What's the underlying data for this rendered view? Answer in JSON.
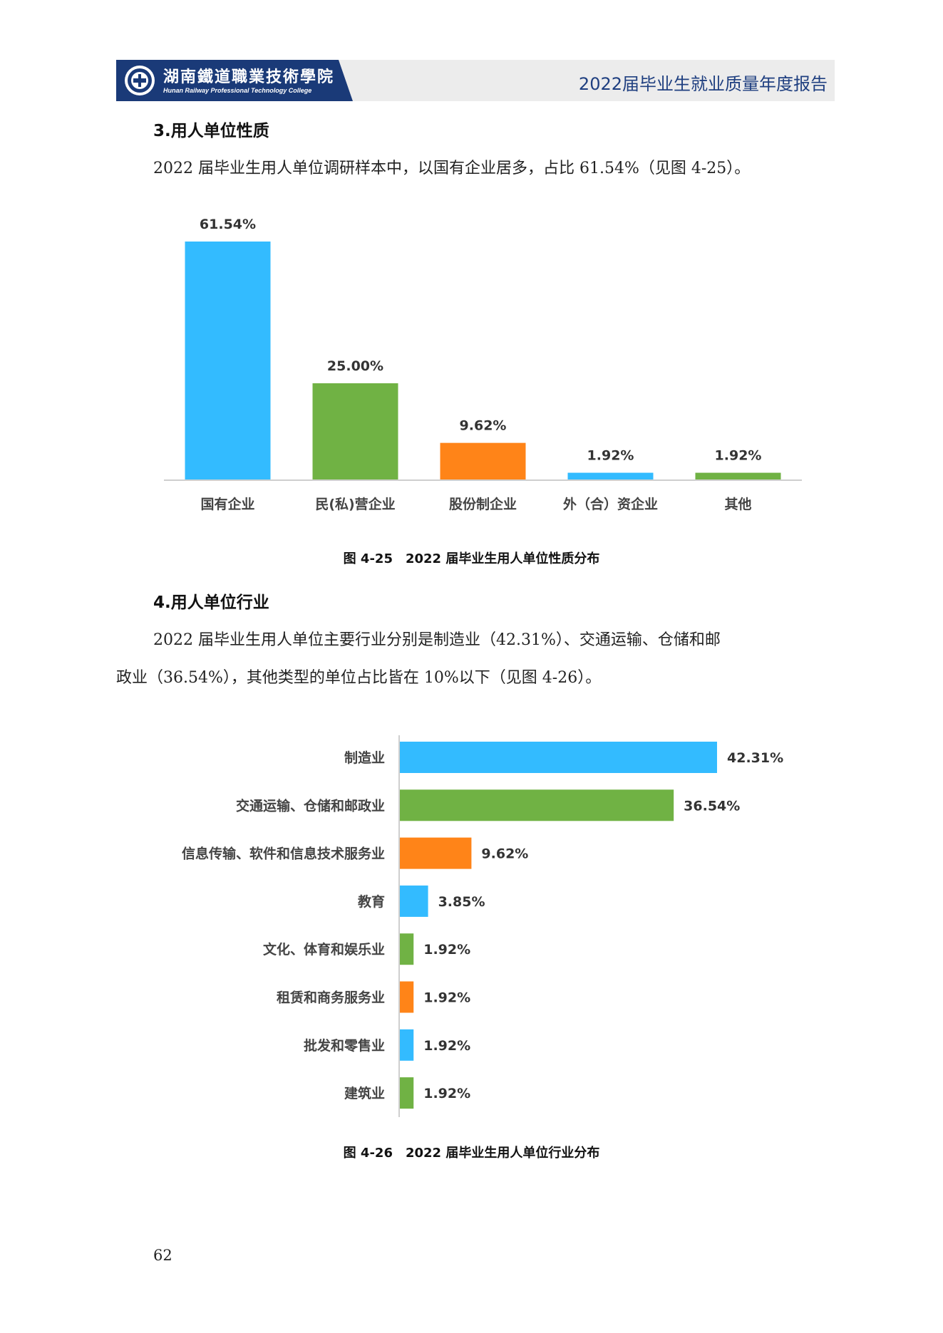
{
  "header": {
    "school_name": "湖南鐵道職業技術學院",
    "school_name_en": "Hunan Railway Professional Technology College",
    "report_title": "2022届毕业生就业质量年度报告"
  },
  "section3": {
    "heading": "3.用人单位性质",
    "text": "2022 届毕业生用人单位调研样本中，以国有企业居多，占比 61.54%（见图 4-25）。"
  },
  "figure_25_caption": "图 4-25　2022 届毕业生用人单位性质分布",
  "section4": {
    "heading": "4.用人单位行业",
    "text_line1": "2022 届毕业生用人单位主要行业分别是制造业（42.31%）、交通运输、仓储和邮",
    "text_line2": "政业（36.54%），其他类型的单位占比皆在 10%以下（见图 4-26）。"
  },
  "figure_26_caption": "图 4-26　2022 届毕业生用人单位行业分布",
  "page_number": "62",
  "colors": {
    "blue": "#33bbff",
    "green": "#70b244",
    "orange": "#ff8418",
    "header_navy": "#1a3a78",
    "header_title": "#1f3f80"
  },
  "chart_data": [
    {
      "type": "bar",
      "orientation": "vertical",
      "categories": [
        "国有企业",
        "民(私)营企业",
        "股份制企业",
        "外（合）资企业",
        "其他"
      ],
      "values": [
        61.54,
        25.0,
        9.62,
        1.92,
        1.92
      ],
      "data_labels": [
        "61.54%",
        "25.00%",
        "9.62%",
        "1.92%",
        "1.92%"
      ],
      "bar_colors": [
        "#33bbff",
        "#70b244",
        "#ff8418",
        "#33bbff",
        "#70b244"
      ],
      "unit": "%",
      "ylim": [
        0,
        61.54
      ],
      "grid": false
    },
    {
      "type": "bar",
      "orientation": "horizontal",
      "categories": [
        "制造业",
        "交通运输、仓储和邮政业",
        "信息传输、软件和信息技术服务业",
        "教育",
        "文化、体育和娱乐业",
        "租赁和商务服务业",
        "批发和零售业",
        "建筑业"
      ],
      "values": [
        42.31,
        36.54,
        9.62,
        3.85,
        1.92,
        1.92,
        1.92,
        1.92
      ],
      "data_labels": [
        "42.31%",
        "36.54%",
        "9.62%",
        "3.85%",
        "1.92%",
        "1.92%",
        "1.92%",
        "1.92%"
      ],
      "bar_colors": [
        "#33bbff",
        "#70b244",
        "#ff8418",
        "#33bbff",
        "#70b244",
        "#ff8418",
        "#33bbff",
        "#70b244"
      ],
      "unit": "%",
      "xlim": [
        0,
        42.31
      ],
      "grid": false
    }
  ]
}
